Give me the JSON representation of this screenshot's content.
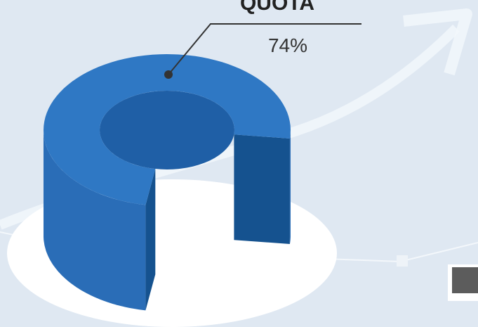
{
  "chart_data": {
    "type": "donut3d",
    "title": "QUOTA",
    "values": [
      74
    ],
    "value_labels": [
      "74%"
    ],
    "color": "#2f78c4"
  }
}
